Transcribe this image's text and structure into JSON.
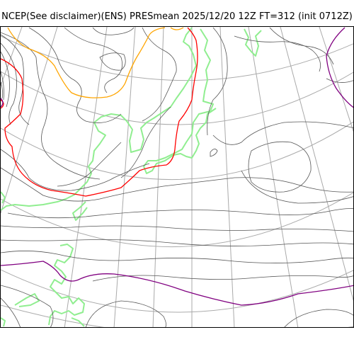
{
  "title": "NCEP(See disclaimer)(ENS) PRESmean 2025/12/20 12Z FT=312 (init 0712Z)",
  "colors": {
    "isobar": "#555555",
    "grid": "#aaaaaa",
    "coastline": "#90ee90",
    "contour_orange": "#ffa500",
    "contour_red": "#ff0000",
    "contour_purple": "#800080",
    "frame": "#000000"
  }
}
